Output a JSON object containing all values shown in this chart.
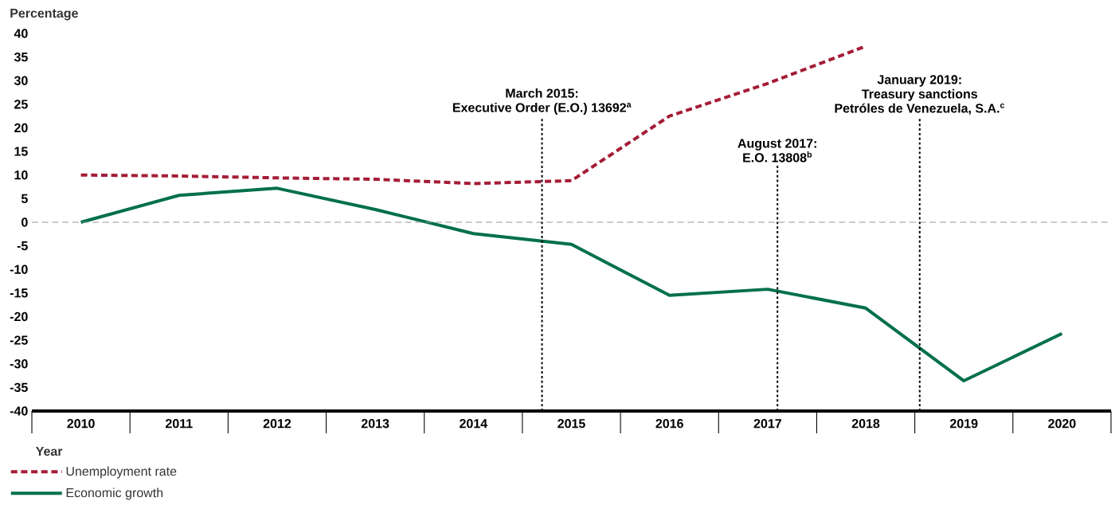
{
  "chart_data": {
    "type": "line",
    "xlabel": "Year",
    "ylabel": "Percentage",
    "x": [
      2010,
      2011,
      2012,
      2013,
      2014,
      2015,
      2016,
      2017,
      2018,
      2019,
      2020
    ],
    "xlim": [
      2009.5,
      2020.5
    ],
    "xticks": [
      2010,
      2011,
      2012,
      2013,
      2014,
      2015,
      2016,
      2017,
      2018,
      2019,
      2020
    ],
    "ylim": [
      -40,
      40
    ],
    "yticks": [
      -40,
      -35,
      -30,
      -25,
      -20,
      -15,
      -10,
      -5,
      0,
      5,
      10,
      15,
      20,
      25,
      30,
      35,
      40
    ],
    "series": [
      {
        "name": "Unemployment rate",
        "color": "#a51c36",
        "line_style": "dashed",
        "values": [
          10.0,
          9.8,
          9.4,
          9.1,
          8.2,
          8.8,
          22.5,
          29.4,
          37.3,
          null,
          null
        ]
      },
      {
        "name": "Economic growth",
        "color": "#00704a",
        "line_style": "solid",
        "values": [
          0,
          5.7,
          7.2,
          2.7,
          -2.4,
          -4.7,
          -15.5,
          -14.2,
          -18.2,
          -33.6,
          -23.6
        ]
      }
    ],
    "ref_lines": [
      {
        "axis": "y",
        "value": 0,
        "color": "#999999",
        "line_style": "dashed"
      },
      {
        "axis": "x",
        "value": 2014.7,
        "label": "March 2015:\nExecutive Order (E.O.) 13692$^{a}$",
        "color": "#000000",
        "line_style": "dotted"
      },
      {
        "axis": "x",
        "value": 2017.1,
        "label": "August 2017:\nE.O. 13808$^{b}$",
        "color": "#000000",
        "line_style": "dotted"
      },
      {
        "axis": "x",
        "value": 2018.55,
        "label": "January 2019:\nTreasury sanctions\nPetróles de Venezuela, S.A.$^{c}$",
        "color": "#000000",
        "line_style": "dotted"
      }
    ],
    "legend": "bottom left",
    "grid": false,
    "marker": "none"
  }
}
